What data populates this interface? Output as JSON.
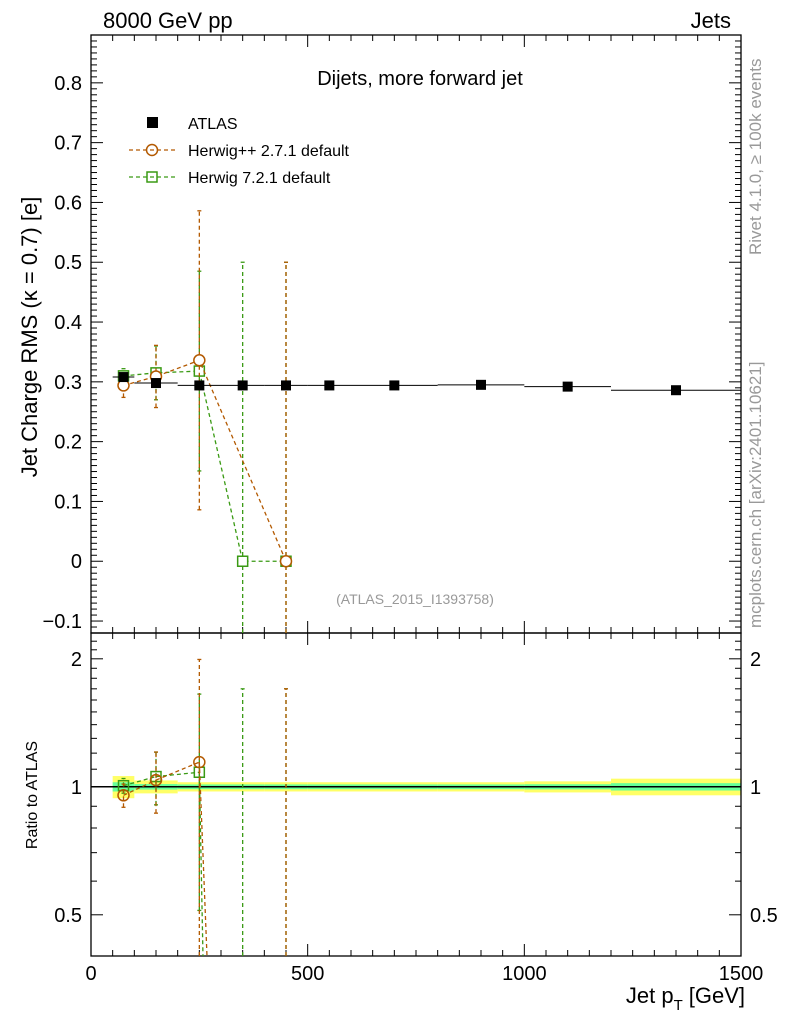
{
  "header": {
    "left": "8000 GeV pp",
    "right": "Jets"
  },
  "side_labels": {
    "rivet": "Rivet 4.1.0, ≥ 100k events",
    "mcplots": "mcplots.cern.ch [arXiv:2401.10621]"
  },
  "chart_data": {
    "type": "scatter",
    "title": "Dijets, more forward jet",
    "xlabel": "Jet p_T [GeV]",
    "xlabel_main": "Jet p",
    "xlabel_sub": "T",
    "xlabel_unit": "[GeV]",
    "ylabel": "Jet Charge RMS (κ = 0.7) [e]",
    "ratio_ylabel": "Ratio to ATLAS",
    "watermark": "(ATLAS_2015_I1393758)",
    "xlim": [
      0,
      1500
    ],
    "ylim": [
      -0.12,
      0.88
    ],
    "ratio_ylim": [
      0.4,
      2.3
    ],
    "x_ticks": [
      0,
      500,
      1000,
      1500
    ],
    "x_tick_labels": [
      "0",
      "500",
      "1000",
      "1500"
    ],
    "y_ticks": [
      -0.1,
      0,
      0.1,
      0.2,
      0.3,
      0.4,
      0.5,
      0.6,
      0.7,
      0.8
    ],
    "y_tick_labels": [
      "−0.1",
      "0",
      "0.1",
      "0.2",
      "0.3",
      "0.4",
      "0.5",
      "0.6",
      "0.7",
      "0.8"
    ],
    "ratio_ticks": [
      0.5,
      1,
      2
    ],
    "ratio_tick_labels": [
      "0.5",
      "1",
      "2"
    ],
    "legend": [
      "ATLAS",
      "Herwig++ 2.7.1 default",
      "Herwig 7.2.1 default"
    ],
    "legend_position": "top-left",
    "colors": {
      "data": "#000000",
      "herwigpp": "#b35900",
      "herwig7": "#3a9a14",
      "band_inner": "#66ff99",
      "band_outer": "#ffff66"
    },
    "series": [
      {
        "name": "ATLAS",
        "x": [
          75,
          150,
          250,
          350,
          450,
          550,
          700,
          900,
          1100,
          1350
        ],
        "xerr": [
          25,
          50,
          50,
          50,
          50,
          50,
          100,
          100,
          100,
          150
        ],
        "y": [
          0.308,
          0.298,
          0.294,
          0.294,
          0.294,
          0.294,
          0.294,
          0.295,
          0.292,
          0.286
        ],
        "yerr": [
          0.008,
          0.005,
          0.004,
          0.004,
          0.004,
          0.004,
          0.004,
          0.004,
          0.004,
          0.006
        ]
      },
      {
        "name": "Herwig++ 2.7.1 default",
        "x": [
          75,
          150,
          250,
          450
        ],
        "y": [
          0.294,
          0.309,
          0.336,
          0.0
        ],
        "yerr": [
          0.02,
          0.052,
          0.25,
          0.5
        ]
      },
      {
        "name": "Herwig 7.2.1 default",
        "x": [
          75,
          150,
          250,
          350,
          450
        ],
        "y": [
          0.31,
          0.315,
          0.318,
          0.0,
          0.0
        ],
        "yerr": [
          0.012,
          0.045,
          0.167,
          0.5,
          0.5
        ]
      }
    ],
    "ratio": {
      "herwigpp": {
        "x": [
          75,
          150,
          250,
          450
        ],
        "y": [
          0.955,
          1.037,
          1.143,
          0.0
        ],
        "yerr": [
          0.06,
          0.17,
          0.85,
          1.7
        ]
      },
      "herwig7": {
        "x": [
          75,
          150,
          250,
          350,
          450
        ],
        "y": [
          1.006,
          1.057,
          1.082,
          0.0,
          0.0
        ],
        "yerr": [
          0.04,
          0.15,
          0.57,
          1.7,
          1.7
        ]
      },
      "band_inner": [
        0.025,
        0.015,
        0.013,
        0.013,
        0.013,
        0.013,
        0.013,
        0.013,
        0.014,
        0.02
      ],
      "band_outer": [
        0.06,
        0.035,
        0.025,
        0.025,
        0.025,
        0.025,
        0.025,
        0.025,
        0.03,
        0.045
      ]
    }
  }
}
